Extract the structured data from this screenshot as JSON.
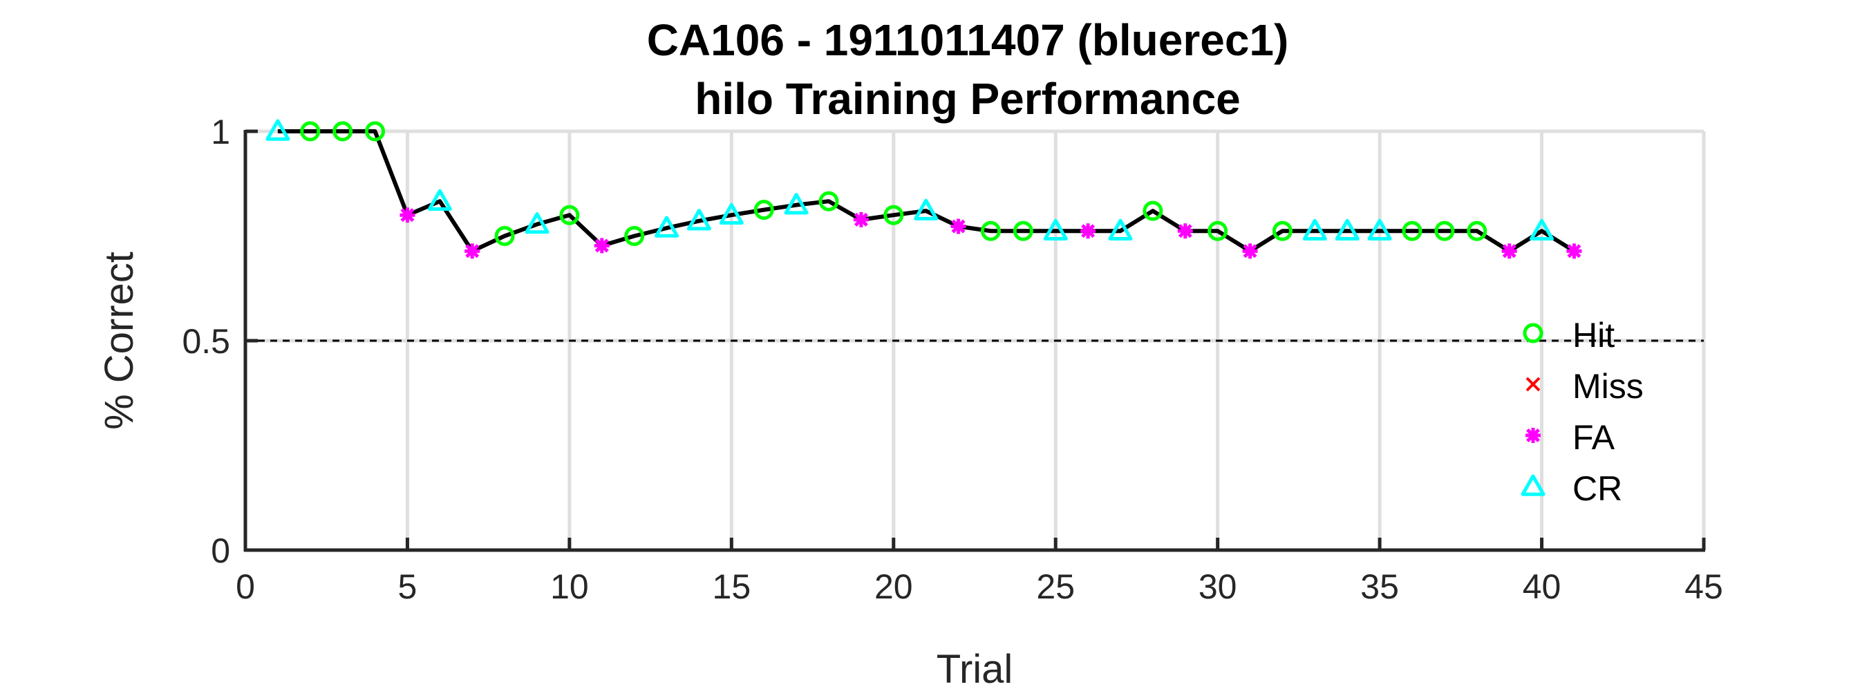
{
  "chart_data": {
    "type": "line",
    "title": [
      "CA106 - 1911011407 (bluerec1)",
      "hilo Training Performance"
    ],
    "xlabel": "Trial",
    "ylabel": "% Correct",
    "xlim": [
      0,
      45
    ],
    "ylim": [
      0,
      1
    ],
    "xticks": [
      0,
      5,
      10,
      15,
      20,
      25,
      30,
      35,
      40,
      45
    ],
    "yticks": [
      0,
      0.5,
      1
    ],
    "xtick_labels": [
      "0",
      "5",
      "10",
      "15",
      "20",
      "25",
      "30",
      "35",
      "40",
      "45"
    ],
    "ytick_labels": [
      "0",
      "0.5",
      "1"
    ],
    "grid": true,
    "reference_line": {
      "y": 0.5,
      "style": "dashed",
      "color": "#000000"
    },
    "line_color": "#000000",
    "legend_position": "east",
    "legend": [
      {
        "name": "Hit",
        "marker": "circle",
        "color": "#00ff00"
      },
      {
        "name": "Miss",
        "marker": "x",
        "color": "#ff0000"
      },
      {
        "name": "FA",
        "marker": "asterisk",
        "color": "#ff00ff"
      },
      {
        "name": "CR",
        "marker": "triangle",
        "color": "#00ffff"
      }
    ],
    "points": [
      {
        "x": 1,
        "y": 1.0,
        "outcome": "CR"
      },
      {
        "x": 2,
        "y": 1.0,
        "outcome": "Hit"
      },
      {
        "x": 3,
        "y": 1.0,
        "outcome": "Hit"
      },
      {
        "x": 4,
        "y": 1.0,
        "outcome": "Hit"
      },
      {
        "x": 5,
        "y": 0.8,
        "outcome": "FA"
      },
      {
        "x": 6,
        "y": 0.833,
        "outcome": "CR"
      },
      {
        "x": 7,
        "y": 0.714,
        "outcome": "FA"
      },
      {
        "x": 8,
        "y": 0.75,
        "outcome": "Hit"
      },
      {
        "x": 9,
        "y": 0.778,
        "outcome": "CR"
      },
      {
        "x": 10,
        "y": 0.8,
        "outcome": "Hit"
      },
      {
        "x": 11,
        "y": 0.727,
        "outcome": "FA"
      },
      {
        "x": 12,
        "y": 0.75,
        "outcome": "Hit"
      },
      {
        "x": 13,
        "y": 0.769,
        "outcome": "CR"
      },
      {
        "x": 14,
        "y": 0.786,
        "outcome": "CR"
      },
      {
        "x": 15,
        "y": 0.8,
        "outcome": "CR"
      },
      {
        "x": 16,
        "y": 0.8125,
        "outcome": "Hit"
      },
      {
        "x": 17,
        "y": 0.824,
        "outcome": "CR"
      },
      {
        "x": 18,
        "y": 0.833,
        "outcome": "Hit"
      },
      {
        "x": 19,
        "y": 0.789,
        "outcome": "FA"
      },
      {
        "x": 20,
        "y": 0.8,
        "outcome": "Hit"
      },
      {
        "x": 21,
        "y": 0.81,
        "outcome": "CR"
      },
      {
        "x": 22,
        "y": 0.773,
        "outcome": "FA"
      },
      {
        "x": 23,
        "y": 0.762,
        "outcome": "Hit"
      },
      {
        "x": 24,
        "y": 0.762,
        "outcome": "Hit"
      },
      {
        "x": 25,
        "y": 0.762,
        "outcome": "CR"
      },
      {
        "x": 26,
        "y": 0.762,
        "outcome": "FA"
      },
      {
        "x": 27,
        "y": 0.762,
        "outcome": "CR"
      },
      {
        "x": 28,
        "y": 0.81,
        "outcome": "Hit"
      },
      {
        "x": 29,
        "y": 0.762,
        "outcome": "FA"
      },
      {
        "x": 30,
        "y": 0.762,
        "outcome": "Hit"
      },
      {
        "x": 31,
        "y": 0.714,
        "outcome": "FA"
      },
      {
        "x": 32,
        "y": 0.762,
        "outcome": "Hit"
      },
      {
        "x": 33,
        "y": 0.762,
        "outcome": "CR"
      },
      {
        "x": 34,
        "y": 0.762,
        "outcome": "CR"
      },
      {
        "x": 35,
        "y": 0.762,
        "outcome": "CR"
      },
      {
        "x": 36,
        "y": 0.762,
        "outcome": "Hit"
      },
      {
        "x": 37,
        "y": 0.762,
        "outcome": "Hit"
      },
      {
        "x": 38,
        "y": 0.762,
        "outcome": "Hit"
      },
      {
        "x": 39,
        "y": 0.714,
        "outcome": "FA"
      },
      {
        "x": 40,
        "y": 0.762,
        "outcome": "CR"
      },
      {
        "x": 41,
        "y": 0.714,
        "outcome": "FA"
      }
    ]
  }
}
